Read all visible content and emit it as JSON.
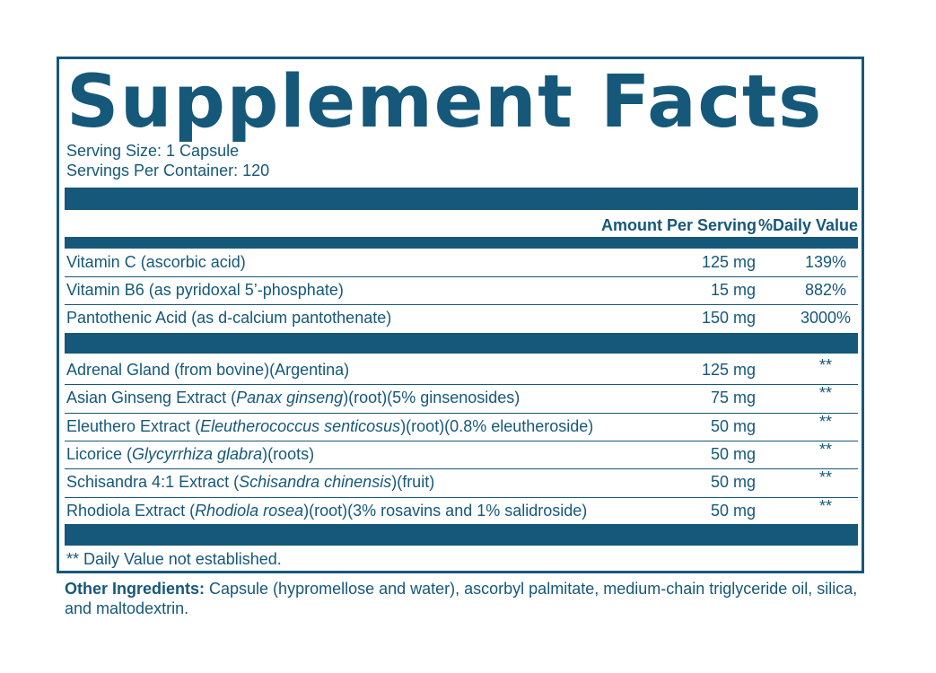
{
  "title": "Supplement Facts",
  "serving_size": "Serving Size: 1 Capsule",
  "servings_per_container": "Servings Per Container: 120",
  "header": {
    "amount": "Amount Per Serving",
    "daily_value": "%Daily Value"
  },
  "vitamins": [
    {
      "name": "Vitamin C (ascorbic acid)",
      "amount": "125 mg",
      "dv": "139%"
    },
    {
      "name": "Vitamin B6 (as pyridoxal 5’-phosphate)",
      "amount": "15 mg",
      "dv": "882%"
    },
    {
      "name": "Pantothenic Acid (as d-calcium pantothenate)",
      "amount": "150 mg",
      "dv": "3000%"
    }
  ],
  "botanicals": [
    {
      "pre": "Adrenal Gland (from bovine)(Argentina)",
      "latin": "",
      "post": "",
      "amount": "125 mg",
      "dv": "**"
    },
    {
      "pre": "Asian Ginseng Extract (",
      "latin": "Panax ginseng",
      "post": ")(root)(5% ginsenosides)",
      "amount": "75 mg",
      "dv": "**"
    },
    {
      "pre": "Eleuthero Extract (",
      "latin": "Eleutherococcus senticosus",
      "post": ")(root)(0.8% eleutheroside)",
      "amount": "50 mg",
      "dv": "**"
    },
    {
      "pre": "Licorice (",
      "latin": "Glycyrrhiza glabra",
      "post": ")(roots)",
      "amount": "50 mg",
      "dv": "**"
    },
    {
      "pre": "Schisandra 4:1 Extract (",
      "latin": "Schisandra chinensis",
      "post": ")(fruit)",
      "amount": "50 mg",
      "dv": "**"
    },
    {
      "pre": "Rhodiola Extract (",
      "latin": "Rhodiola rosea",
      "post": ")(root)(3% rosavins and 1% salidroside)",
      "amount": "50 mg",
      "dv": "**"
    }
  ],
  "footnote": "** Daily Value not established.",
  "other_ingredients": {
    "label": "Other Ingredients:",
    "text": " Capsule (hypromellose and water), ascorbyl palmitate, medium-chain triglyceride oil, silica, and maltodextrin."
  },
  "colors": {
    "brand": "#15587a"
  }
}
